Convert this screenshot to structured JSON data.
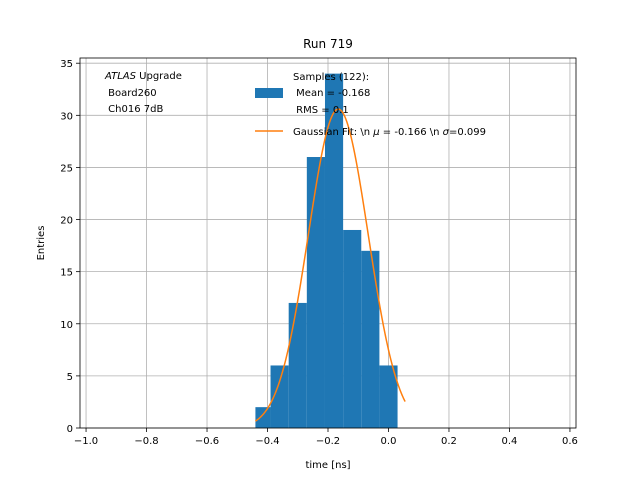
{
  "chart_data": {
    "type": "bar",
    "title": "Run 719",
    "xlabel": "time [ns]",
    "ylabel": "Entries",
    "xlim": [
      -1.02,
      0.62
    ],
    "ylim": [
      0,
      35.5
    ],
    "grid": true,
    "x_ticks": [
      -1.0,
      -0.8,
      -0.6,
      -0.4,
      -0.2,
      0.0,
      0.2,
      0.4,
      0.6
    ],
    "x_tick_labels": [
      "−1.0",
      "−0.8",
      "−0.6",
      "−0.4",
      "−0.2",
      "0.0",
      "0.2",
      "0.4",
      "0.6"
    ],
    "y_ticks": [
      0,
      5,
      10,
      15,
      20,
      25,
      30,
      35
    ],
    "y_tick_labels": [
      "0",
      "5",
      "10",
      "15",
      "20",
      "25",
      "30",
      "35"
    ],
    "annotation": {
      "atlas": "ATLAS",
      "upgrade": " Upgrade",
      "board": " Board260",
      "channel": " Ch016 7dB"
    },
    "legend": {
      "placement": "top-center",
      "histogram_lines": [
        "Samples (122):",
        " Mean = -0.168",
        " RMS = 0.1"
      ],
      "fit_prefix": "Gaussian Fit: \\n ",
      "fit_mu_sym": "μ",
      "fit_mid": " = -0.166 \\n ",
      "fit_sigma_sym": "σ",
      "fit_suffix": "=0.099"
    },
    "histogram": {
      "name": "Samples",
      "color": "#1f77b4",
      "bin_edges": [
        -0.44,
        -0.39,
        -0.33,
        -0.27,
        -0.21,
        -0.15,
        -0.09,
        -0.03,
        0.03,
        0.06
      ],
      "counts": [
        2,
        6,
        12,
        26,
        34,
        19,
        17,
        6,
        0
      ]
    },
    "fit": {
      "name": "Gaussian Fit",
      "color": "#ff7f0e",
      "amplitude": 30.6,
      "mu": -0.166,
      "sigma": 0.099,
      "x_range": [
        -0.44,
        0.055
      ]
    }
  }
}
